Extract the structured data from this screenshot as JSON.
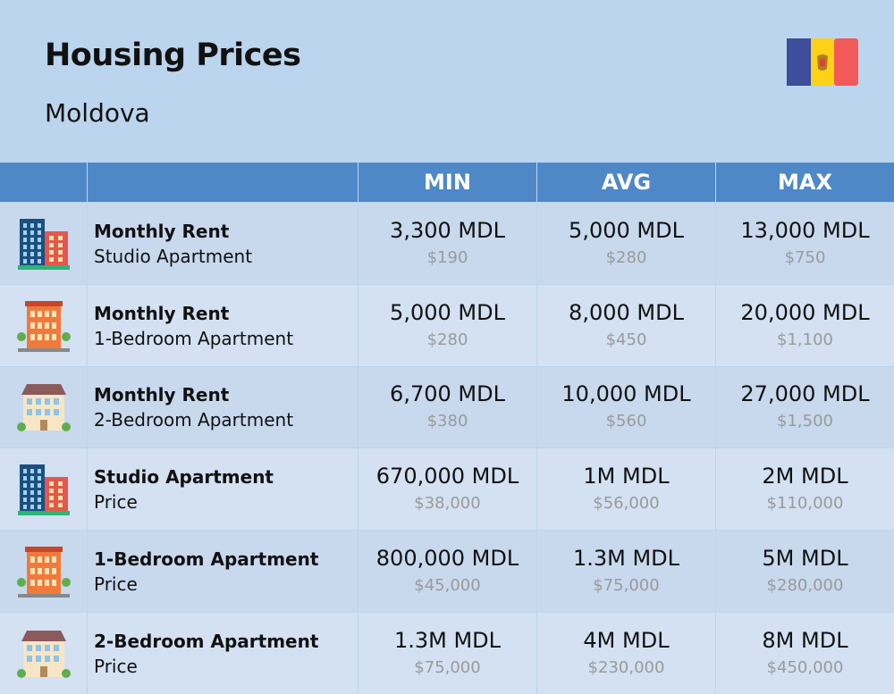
{
  "header": {
    "title": "Housing Prices",
    "subtitle": "Moldova"
  },
  "table": {
    "columns": [
      "MIN",
      "AVG",
      "MAX"
    ],
    "rows": [
      {
        "title": "Monthly Rent",
        "subtitle": "Studio Apartment",
        "cells": [
          {
            "local": "3,300 MDL",
            "usd": "$190"
          },
          {
            "local": "5,000 MDL",
            "usd": "$280"
          },
          {
            "local": "13,000 MDL",
            "usd": "$750"
          }
        ]
      },
      {
        "title": "Monthly Rent",
        "subtitle": "1-Bedroom Apartment",
        "cells": [
          {
            "local": "5,000 MDL",
            "usd": "$280"
          },
          {
            "local": "8,000 MDL",
            "usd": "$450"
          },
          {
            "local": "20,000 MDL",
            "usd": "$1,100"
          }
        ]
      },
      {
        "title": "Monthly Rent",
        "subtitle": "2-Bedroom Apartment",
        "cells": [
          {
            "local": "6,700 MDL",
            "usd": "$380"
          },
          {
            "local": "10,000 MDL",
            "usd": "$560"
          },
          {
            "local": "27,000 MDL",
            "usd": "$1,500"
          }
        ]
      },
      {
        "title": "Studio Apartment",
        "subtitle": "Price",
        "cells": [
          {
            "local": "670,000 MDL",
            "usd": "$38,000"
          },
          {
            "local": "1M MDL",
            "usd": "$56,000"
          },
          {
            "local": "2M MDL",
            "usd": "$110,000"
          }
        ]
      },
      {
        "title": "1-Bedroom Apartment",
        "subtitle": "Price",
        "cells": [
          {
            "local": "800,000 MDL",
            "usd": "$45,000"
          },
          {
            "local": "1.3M MDL",
            "usd": "$75,000"
          },
          {
            "local": "5M MDL",
            "usd": "$280,000"
          }
        ]
      },
      {
        "title": "2-Bedroom Apartment",
        "subtitle": "Price",
        "cells": [
          {
            "local": "1.3M MDL",
            "usd": "$75,000"
          },
          {
            "local": "4M MDL",
            "usd": "$230,000"
          },
          {
            "local": "8M MDL",
            "usd": "$450,000"
          }
        ]
      }
    ]
  }
}
